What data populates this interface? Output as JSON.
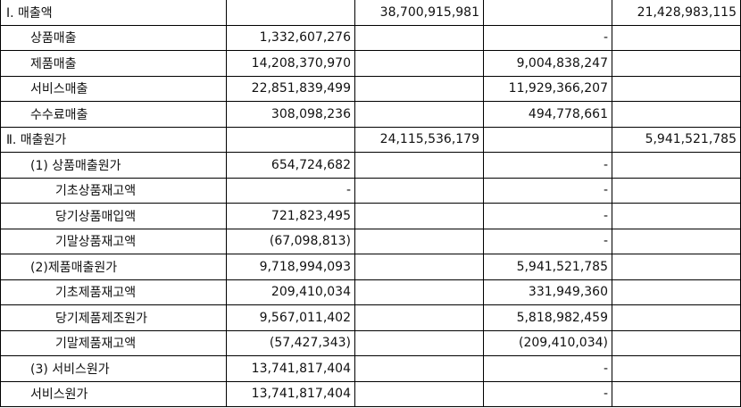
{
  "rows": [
    {
      "label": "Ⅰ. 매출액",
      "level": 0,
      "c1": "",
      "c2": "38,700,915,981",
      "c3": "",
      "c4": "21,428,983,115"
    },
    {
      "label": "상품매출",
      "level": 1,
      "c1": "1,332,607,276",
      "c2": "",
      "c3": "-",
      "c4": ""
    },
    {
      "label": "제품매출",
      "level": 1,
      "c1": "14,208,370,970",
      "c2": "",
      "c3": "9,004,838,247",
      "c4": ""
    },
    {
      "label": "서비스매출",
      "level": 1,
      "c1": "22,851,839,499",
      "c2": "",
      "c3": "11,929,366,207",
      "c4": ""
    },
    {
      "label": "수수료매출",
      "level": 1,
      "c1": "308,098,236",
      "c2": "",
      "c3": "494,778,661",
      "c4": ""
    },
    {
      "label": "Ⅱ. 매출원가",
      "level": 0,
      "c1": "",
      "c2": "24,115,536,179",
      "c3": "",
      "c4": "5,941,521,785"
    },
    {
      "label": "(1) 상품매출원가",
      "level": 1,
      "c1": "654,724,682",
      "c2": "",
      "c3": "-",
      "c4": ""
    },
    {
      "label": "기초상품재고액",
      "level": 2,
      "c1": "-",
      "c2": "",
      "c3": "-",
      "c4": ""
    },
    {
      "label": "당기상품매입액",
      "level": 2,
      "c1": "721,823,495",
      "c2": "",
      "c3": "-",
      "c4": ""
    },
    {
      "label": "기말상품재고액",
      "level": 2,
      "c1": "(67,098,813)",
      "c2": "",
      "c3": "-",
      "c4": ""
    },
    {
      "label": "(2)제품매출원가",
      "level": 1,
      "c1": "9,718,994,093",
      "c2": "",
      "c3": "5,941,521,785",
      "c4": ""
    },
    {
      "label": "기초제품재고액",
      "level": 2,
      "c1": "209,410,034",
      "c2": "",
      "c3": "331,949,360",
      "c4": ""
    },
    {
      "label": "당기제품제조원가",
      "level": 2,
      "c1": "9,567,011,402",
      "c2": "",
      "c3": "5,818,982,459",
      "c4": ""
    },
    {
      "label": "기말제품재고액",
      "level": 2,
      "c1": "(57,427,343)",
      "c2": "",
      "c3": "(209,410,034)",
      "c4": ""
    },
    {
      "label": "(3) 서비스원가",
      "level": 1,
      "c1": "13,741,817,404",
      "c2": "",
      "c3": "-",
      "c4": ""
    },
    {
      "label": "서비스원가",
      "level": 1,
      "c1": "13,741,817,404",
      "c2": "",
      "c3": "-",
      "c4": ""
    }
  ]
}
